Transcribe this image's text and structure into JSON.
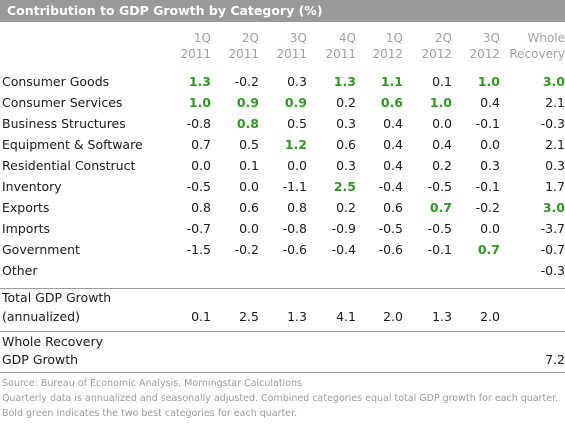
{
  "chart_data": {
    "type": "table",
    "title": "Contribution to GDP Growth by Category (%)",
    "columns": [
      "1Q\n2011",
      "2Q\n2011",
      "3Q\n2011",
      "4Q\n2011",
      "1Q\n2012",
      "2Q\n2012",
      "3Q\n2012",
      "Whole\nRecovery"
    ],
    "rows": [
      {
        "label": "Consumer Goods",
        "values": [
          "1.3",
          "-0.2",
          "0.3",
          "1.3",
          "1.1",
          "0.1",
          "1.0",
          "3.0"
        ],
        "best": [
          true,
          false,
          false,
          true,
          true,
          false,
          true,
          true
        ]
      },
      {
        "label": "Consumer Services",
        "values": [
          "1.0",
          "0.9",
          "0.9",
          "0.2",
          "0.6",
          "1.0",
          "0.4",
          "2.1"
        ],
        "best": [
          true,
          true,
          true,
          false,
          true,
          true,
          false,
          false
        ]
      },
      {
        "label": "Business Structures",
        "values": [
          "-0.8",
          "0.8",
          "0.5",
          "0.3",
          "0.4",
          "0.0",
          "-0.1",
          "-0.3"
        ],
        "best": [
          false,
          true,
          false,
          false,
          false,
          false,
          false,
          false
        ]
      },
      {
        "label": "Equipment & Software",
        "values": [
          "0.7",
          "0.5",
          "1.2",
          "0.6",
          "0.4",
          "0.4",
          "0.0",
          "2.1"
        ],
        "best": [
          false,
          false,
          true,
          false,
          false,
          false,
          false,
          false
        ]
      },
      {
        "label": "Residential Construct",
        "values": [
          "0.0",
          "0.1",
          "0.0",
          "0.3",
          "0.4",
          "0.2",
          "0.3",
          "0.3"
        ],
        "best": [
          false,
          false,
          false,
          false,
          false,
          false,
          false,
          false
        ]
      },
      {
        "label": "Inventory",
        "values": [
          "-0.5",
          "0.0",
          "-1.1",
          "2.5",
          "-0.4",
          "-0.5",
          "-0.1",
          "1.7"
        ],
        "best": [
          false,
          false,
          false,
          true,
          false,
          false,
          false,
          false
        ]
      },
      {
        "label": "Exports",
        "values": [
          "0.8",
          "0.6",
          "0.8",
          "0.2",
          "0.6",
          "0.7",
          "-0.2",
          "3.0"
        ],
        "best": [
          false,
          false,
          false,
          false,
          false,
          true,
          false,
          true
        ]
      },
      {
        "label": "Imports",
        "values": [
          "-0.7",
          "0.0",
          "-0.8",
          "-0.9",
          "-0.5",
          "-0.5",
          "0.0",
          "-3.7"
        ],
        "best": [
          false,
          false,
          false,
          false,
          false,
          false,
          false,
          false
        ]
      },
      {
        "label": "Government",
        "values": [
          "-1.5",
          "-0.2",
          "-0.6",
          "-0.4",
          "-0.6",
          "-0.1",
          "0.7",
          "-0.7"
        ],
        "best": [
          false,
          false,
          false,
          false,
          false,
          false,
          true,
          false
        ]
      },
      {
        "label": "Other",
        "values": [
          "",
          "",
          "",
          "",
          "",
          "",
          "",
          "-0.3"
        ],
        "best": [
          false,
          false,
          false,
          false,
          false,
          false,
          false,
          false
        ]
      }
    ],
    "total": {
      "label_line1": "Total GDP Growth",
      "label_line2": "(annualized)",
      "values": [
        "0.1",
        "2.5",
        "1.3",
        "4.1",
        "2.0",
        "1.3",
        "2.0",
        ""
      ]
    },
    "recovery": {
      "label_line1": "Whole Recovery",
      "label_line2": "GDP Growth",
      "values": [
        "",
        "",
        "",
        "",
        "",
        "",
        "",
        "7.2"
      ]
    },
    "footnotes": [
      "Source: Bureau of Economic Analysis, Morningstar Calculations",
      "Quarterly data is annualized and seasonally adjusted. Combined categories equal total GDP growth for each quarter.",
      "Bold green indicates the two best categories for each quarter."
    ],
    "colors": {
      "title_bg": "#9a9a9a",
      "best": "#2e9a1f",
      "header_text": "#a0a0a0",
      "rule": "#9c9c9c"
    }
  }
}
